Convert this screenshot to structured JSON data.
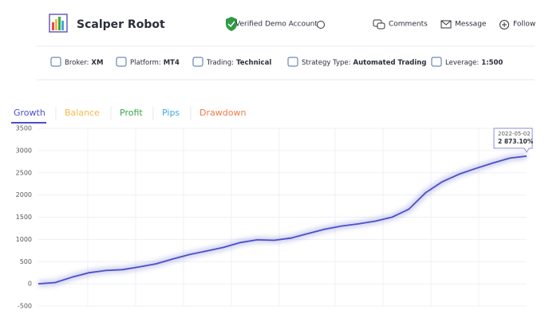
{
  "header": {
    "title": "Scalper Robot",
    "verified": "Verified Demo Account",
    "actions": [
      "Comments",
      "Message",
      "Follow"
    ]
  },
  "info": [
    {
      "label": "Broker:",
      "value": "XM"
    },
    {
      "label": "Platform:",
      "value": "MT4"
    },
    {
      "label": "Trading:",
      "value": "Technical"
    },
    {
      "label": "Strategy Type:",
      "value": "Automated Trading"
    },
    {
      "label": "Leverage:",
      "value": "1:500"
    }
  ],
  "tabs": [
    {
      "label": "Growth",
      "color": "#4b4fc8"
    },
    {
      "label": "Balance",
      "color": "#f5b94a"
    },
    {
      "label": "Profit",
      "color": "#3aa64a"
    },
    {
      "label": "Pips",
      "color": "#3fa9de"
    },
    {
      "label": "Drawdown",
      "color": "#ef7a45"
    }
  ],
  "chart_data": {
    "type": "line",
    "color": "#4b4fc8",
    "grid": true,
    "ylim": [
      -500,
      3500
    ],
    "yticks": [
      -500,
      0,
      500,
      1000,
      1500,
      2000,
      2500,
      3000,
      3500
    ],
    "values": [
      0,
      30,
      150,
      250,
      300,
      320,
      380,
      450,
      560,
      660,
      740,
      820,
      930,
      990,
      980,
      1030,
      1130,
      1230,
      1300,
      1350,
      1410,
      1500,
      1680,
      2050,
      2300,
      2470,
      2600,
      2720,
      2830,
      2873.1
    ],
    "tooltip": {
      "date": "2022-05-02",
      "label": "2 873.10%"
    }
  }
}
